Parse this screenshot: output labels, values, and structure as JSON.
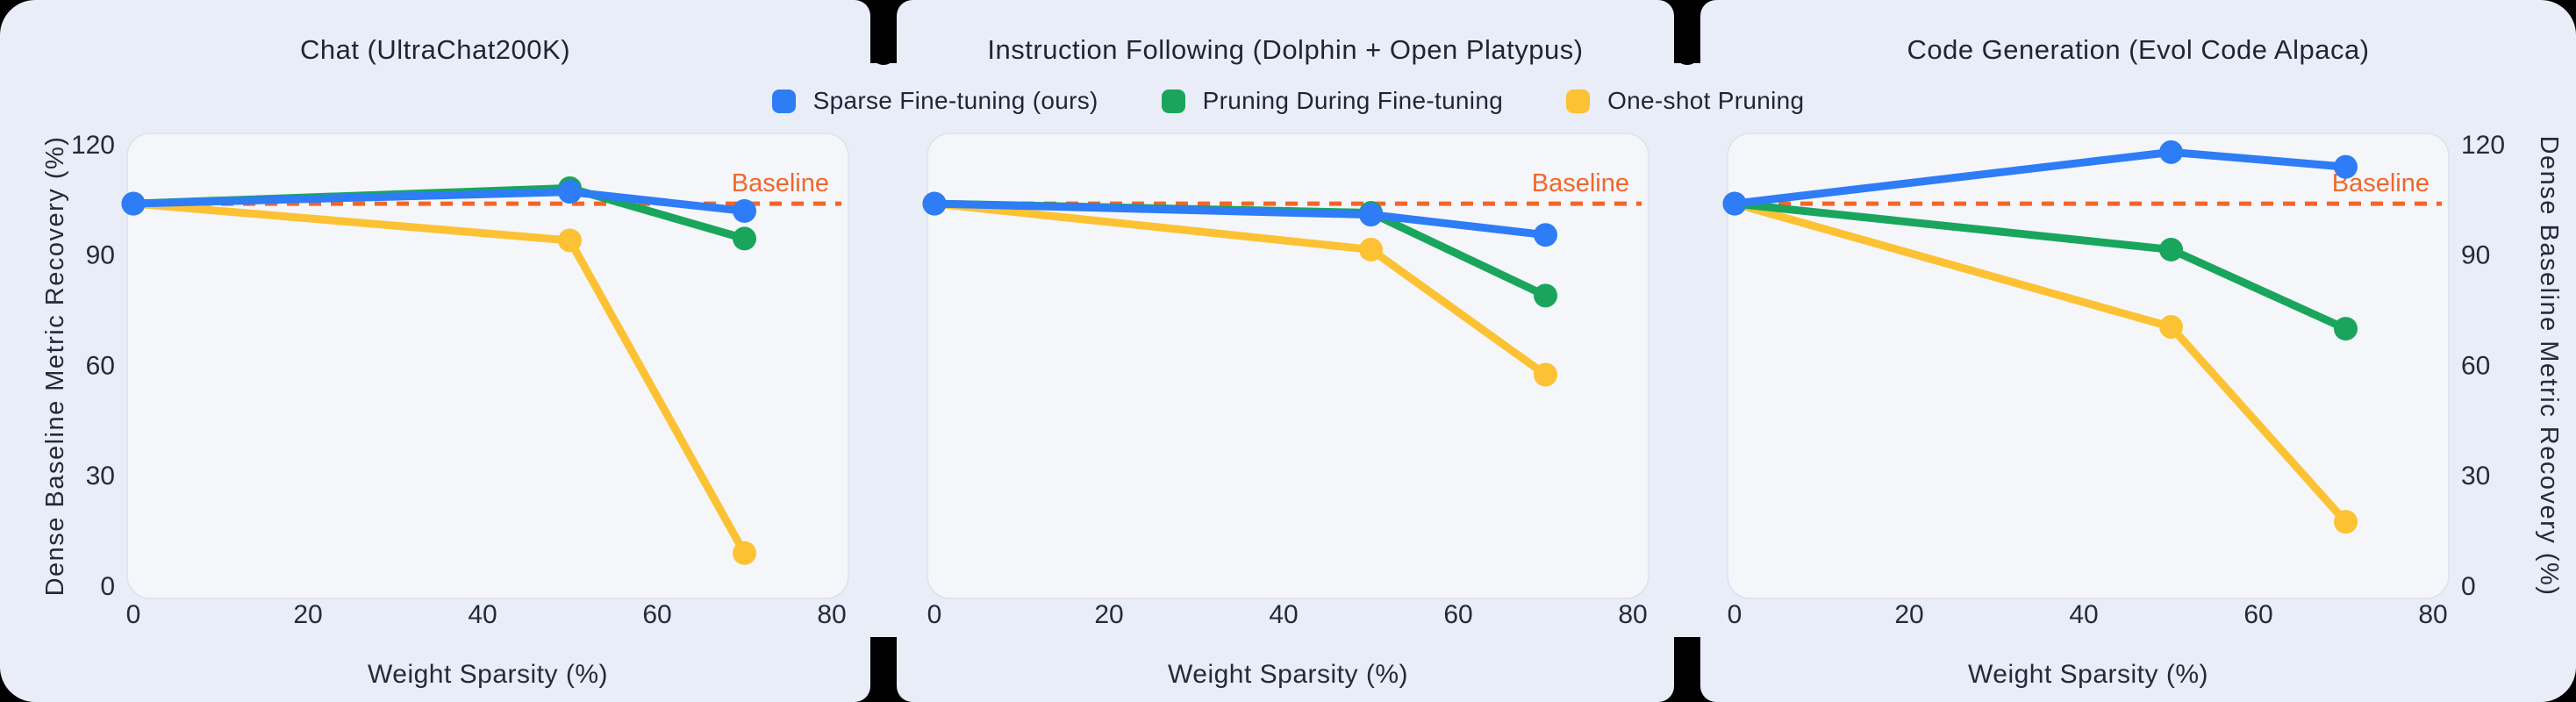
{
  "colors": {
    "blue": "#2e7cf6",
    "green": "#19a65c",
    "yellow": "#fcc233",
    "baseline": "#f2662a",
    "text": "#232b3b",
    "panel_bg": "#e9edf8",
    "plot_bg": "#f4f6fa",
    "plot_border": "#dce1ec",
    "page_bg": "#000000"
  },
  "baseline_label": "Baseline",
  "legend": {
    "items": [
      {
        "label": "Sparse Fine-tuning (ours)",
        "color": "#2e7cf6"
      },
      {
        "label": "Pruning During Fine-tuning",
        "color": "#19a65c"
      },
      {
        "label": "One-shot Pruning",
        "color": "#fcc233"
      }
    ]
  },
  "chart_data": [
    {
      "type": "line",
      "title": "Chat (UltraChat200K)",
      "x": [
        0,
        50,
        70
      ],
      "series": [
        {
          "name": "Sparse Fine-tuning (ours)",
          "color": "blue",
          "values": [
            104,
            107.2,
            102
          ]
        },
        {
          "name": "Pruning During Fine-tuning",
          "color": "green",
          "values": [
            104,
            108.2,
            94.5
          ]
        },
        {
          "name": "One-shot Pruning",
          "color": "yellow",
          "values": [
            104,
            94,
            9
          ]
        }
      ],
      "baseline": 104,
      "xticks": [
        0,
        20,
        40,
        60,
        80
      ],
      "yticks": [
        0,
        30,
        60,
        90,
        120
      ],
      "xlim": [
        0,
        80
      ],
      "ylim": [
        0,
        120
      ],
      "xlabel": "Weight Sparsity (%)",
      "ylabel": "Dense Baseline  Metric Recovery (%)",
      "ylabel_side": "left",
      "grid": false,
      "legend_position": "top-center-shared"
    },
    {
      "type": "line",
      "title": "Instruction Following (Dolphin + Open Platypus)",
      "x": [
        0,
        50,
        70
      ],
      "series": [
        {
          "name": "Sparse Fine-tuning (ours)",
          "color": "blue",
          "values": [
            104,
            101,
            95.5
          ]
        },
        {
          "name": "Pruning During Fine-tuning",
          "color": "green",
          "values": [
            104,
            101.5,
            79
          ]
        },
        {
          "name": "One-shot Pruning",
          "color": "yellow",
          "values": [
            104,
            91.5,
            57.5
          ]
        }
      ],
      "baseline": 104,
      "xticks": [
        0,
        20,
        40,
        60,
        80
      ],
      "yticks": [
        0,
        30,
        60,
        90,
        120
      ],
      "xlim": [
        0,
        80
      ],
      "ylim": [
        0,
        120
      ],
      "xlabel": "Weight Sparsity (%)",
      "ylabel": "",
      "ylabel_side": "none",
      "grid": false,
      "legend_position": "top-center-shared"
    },
    {
      "type": "line",
      "title": "Code Generation (Evol Code Alpaca)",
      "x": [
        0,
        50,
        70
      ],
      "series": [
        {
          "name": "Sparse Fine-tuning (ours)",
          "color": "blue",
          "values": [
            104,
            118,
            114
          ]
        },
        {
          "name": "Pruning During Fine-tuning",
          "color": "green",
          "values": [
            104,
            91.5,
            70
          ]
        },
        {
          "name": "One-shot Pruning",
          "color": "yellow",
          "values": [
            104,
            70.5,
            17.5
          ]
        }
      ],
      "baseline": 104,
      "xticks": [
        0,
        20,
        40,
        60,
        80
      ],
      "yticks": [
        0,
        30,
        60,
        90,
        120
      ],
      "xlim": [
        0,
        80
      ],
      "ylim": [
        0,
        120
      ],
      "xlabel": "Weight Sparsity (%)",
      "ylabel": "Dense Baseline  Metric Recovery (%)",
      "ylabel_side": "right",
      "grid": false,
      "legend_position": "top-center-shared"
    }
  ]
}
